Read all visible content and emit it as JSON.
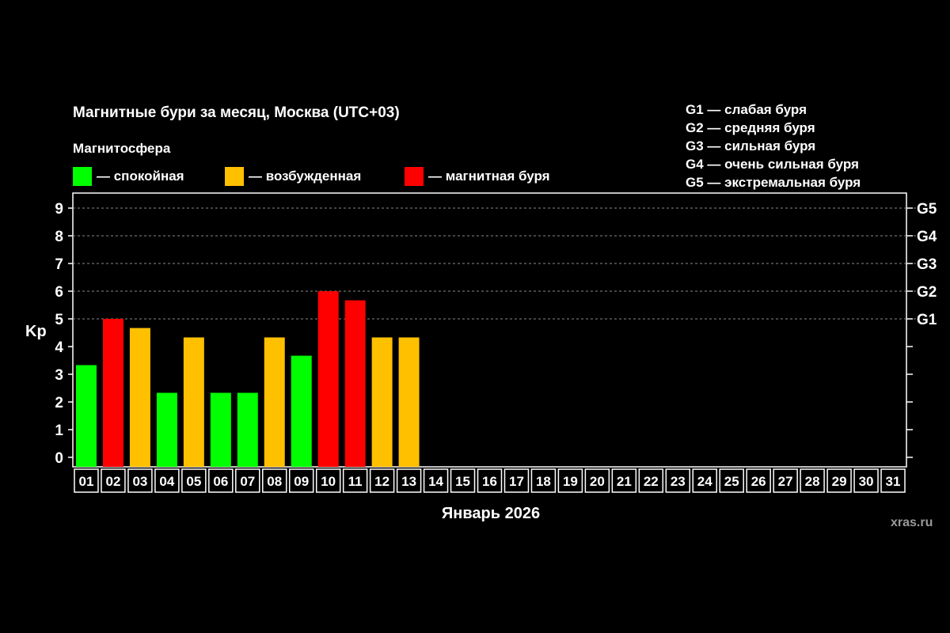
{
  "title": "Магнитные бури за месяц, Москва (UTC+03)",
  "legend": {
    "title": "Магнитосфера",
    "items": [
      {
        "label": "— спокойная",
        "color": "#00ff00"
      },
      {
        "label": "— возбужденная",
        "color": "#ffc000"
      },
      {
        "label": "— магнитная буря",
        "color": "#ff0000"
      }
    ]
  },
  "g_legend": [
    "G1 — слабая буря",
    "G2 — средняя буря",
    "G3 — сильная буря",
    "G4 — очень сильная буря",
    "G5 — экстремальная буря"
  ],
  "watermark": "xras.ru",
  "chart_data": {
    "type": "bar",
    "title": "Магнитные бури за месяц, Москва (UTC+03)",
    "xlabel": "Январь 2026",
    "ylabel": "Kp",
    "ylim": [
      0,
      9
    ],
    "yticks": [
      "0",
      "1",
      "2",
      "3",
      "4",
      "5",
      "6",
      "7",
      "8",
      "9"
    ],
    "right_ticks": [
      {
        "value": 5,
        "label": "G1"
      },
      {
        "value": 6,
        "label": "G2"
      },
      {
        "value": 7,
        "label": "G3"
      },
      {
        "value": 8,
        "label": "G4"
      },
      {
        "value": 9,
        "label": "G5"
      }
    ],
    "grid": "dashed horizontal at 5, 6, 7, 8, 9",
    "categories": [
      "01",
      "02",
      "03",
      "04",
      "05",
      "06",
      "07",
      "08",
      "09",
      "10",
      "11",
      "12",
      "13",
      "14",
      "15",
      "16",
      "17",
      "18",
      "19",
      "20",
      "21",
      "22",
      "23",
      "24",
      "25",
      "26",
      "27",
      "28",
      "29",
      "30",
      "31"
    ],
    "values": [
      3.33,
      5.0,
      4.67,
      2.33,
      4.33,
      2.33,
      2.33,
      4.33,
      3.67,
      6.0,
      5.67,
      4.33,
      4.33,
      null,
      null,
      null,
      null,
      null,
      null,
      null,
      null,
      null,
      null,
      null,
      null,
      null,
      null,
      null,
      null,
      null,
      null
    ],
    "levels": [
      "спокойная",
      "магнитная буря",
      "возбужденная",
      "спокойная",
      "возбужденная",
      "спокойная",
      "спокойная",
      "возбужденная",
      "спокойная",
      "магнитная буря",
      "магнитная буря",
      "возбужденная",
      "возбужденная"
    ],
    "colors": {
      "спокойная": "#00ff00",
      "возбужденная": "#ffc000",
      "магнитная буря": "#ff0000"
    }
  }
}
